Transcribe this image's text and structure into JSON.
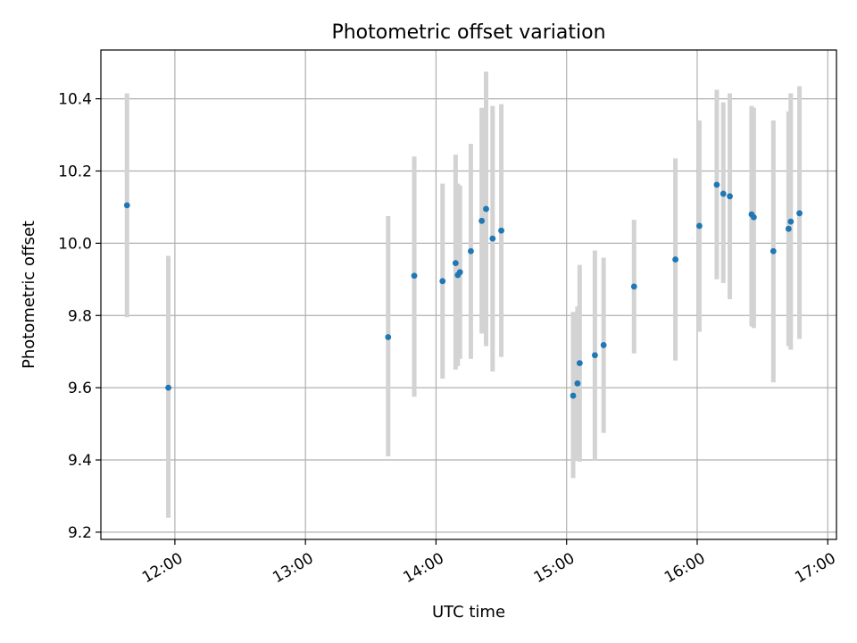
{
  "chart_data": {
    "type": "scatter",
    "title": "Photometric offset variation",
    "xlabel": "UTC time",
    "ylabel": "Photometric offset",
    "x_axis_type": "time",
    "xlim": [
      "11:26",
      "17:04"
    ],
    "ylim": [
      9.18,
      10.535
    ],
    "grid": true,
    "x_ticks": [
      "12:00",
      "13:00",
      "14:00",
      "15:00",
      "16:00",
      "17:00"
    ],
    "y_ticks": [
      9.2,
      9.4,
      9.6,
      9.8,
      10.0,
      10.2,
      10.4
    ],
    "y_tick_labels": [
      "9.2",
      "9.4",
      "9.6",
      "9.8",
      "10.0",
      "10.2",
      "10.4"
    ],
    "point_color": "#1f77b4",
    "errorbar_color": "#d3d3d3",
    "points": [
      {
        "x": "11:38",
        "y": 10.105,
        "ylow": 9.795,
        "yhigh": 10.415
      },
      {
        "x": "11:57",
        "y": 9.6,
        "ylow": 9.24,
        "yhigh": 9.965
      },
      {
        "x": "13:38",
        "y": 9.74,
        "ylow": 9.41,
        "yhigh": 10.075
      },
      {
        "x": "13:50",
        "y": 9.91,
        "ylow": 9.575,
        "yhigh": 10.24
      },
      {
        "x": "14:03",
        "y": 9.895,
        "ylow": 9.625,
        "yhigh": 10.165
      },
      {
        "x": "14:09",
        "y": 9.945,
        "ylow": 9.65,
        "yhigh": 10.245
      },
      {
        "x": "14:10",
        "y": 9.912,
        "ylow": 9.66,
        "yhigh": 10.165
      },
      {
        "x": "14:11",
        "y": 9.92,
        "ylow": 9.68,
        "yhigh": 10.16
      },
      {
        "x": "14:16",
        "y": 9.978,
        "ylow": 9.68,
        "yhigh": 10.275
      },
      {
        "x": "14:21",
        "y": 10.062,
        "ylow": 9.75,
        "yhigh": 10.375
      },
      {
        "x": "14:23",
        "y": 10.095,
        "ylow": 9.715,
        "yhigh": 10.475
      },
      {
        "x": "14:26",
        "y": 10.013,
        "ylow": 9.645,
        "yhigh": 10.38
      },
      {
        "x": "14:30",
        "y": 10.035,
        "ylow": 9.685,
        "yhigh": 10.385
      },
      {
        "x": "15:03",
        "y": 9.578,
        "ylow": 9.35,
        "yhigh": 9.81
      },
      {
        "x": "15:05",
        "y": 9.612,
        "ylow": 9.4,
        "yhigh": 9.825
      },
      {
        "x": "15:06",
        "y": 9.668,
        "ylow": 9.395,
        "yhigh": 9.94
      },
      {
        "x": "15:13",
        "y": 9.69,
        "ylow": 9.4,
        "yhigh": 9.98
      },
      {
        "x": "15:17",
        "y": 9.718,
        "ylow": 9.475,
        "yhigh": 9.96
      },
      {
        "x": "15:31",
        "y": 9.88,
        "ylow": 9.695,
        "yhigh": 10.065
      },
      {
        "x": "15:50",
        "y": 9.955,
        "ylow": 9.675,
        "yhigh": 10.235
      },
      {
        "x": "16:01",
        "y": 10.048,
        "ylow": 9.755,
        "yhigh": 10.34
      },
      {
        "x": "16:09",
        "y": 10.162,
        "ylow": 9.9,
        "yhigh": 10.425
      },
      {
        "x": "16:12",
        "y": 10.137,
        "ylow": 9.89,
        "yhigh": 10.39
      },
      {
        "x": "16:15",
        "y": 10.13,
        "ylow": 9.845,
        "yhigh": 10.415
      },
      {
        "x": "16:25",
        "y": 10.08,
        "ylow": 9.77,
        "yhigh": 10.38
      },
      {
        "x": "16:26",
        "y": 10.072,
        "ylow": 9.765,
        "yhigh": 10.375
      },
      {
        "x": "16:35",
        "y": 9.978,
        "ylow": 9.615,
        "yhigh": 10.34
      },
      {
        "x": "16:42",
        "y": 10.04,
        "ylow": 9.715,
        "yhigh": 10.365
      },
      {
        "x": "16:43",
        "y": 10.06,
        "ylow": 9.705,
        "yhigh": 10.415
      },
      {
        "x": "16:47",
        "y": 10.083,
        "ylow": 9.735,
        "yhigh": 10.435
      }
    ]
  }
}
